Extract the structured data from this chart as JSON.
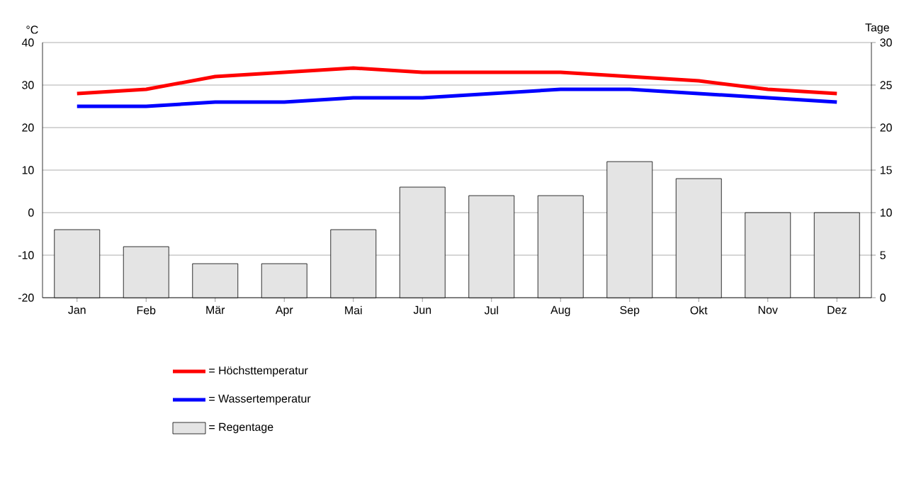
{
  "chart_data": {
    "type": "line",
    "categories": [
      "Jan",
      "Feb",
      "Mär",
      "Apr",
      "Mai",
      "Jun",
      "Jul",
      "Aug",
      "Sep",
      "Okt",
      "Nov",
      "Dez"
    ],
    "series": [
      {
        "name": "= Höchsttemperatur",
        "color": "#ff0000",
        "values": [
          28,
          29,
          32,
          33,
          34,
          33,
          33,
          33,
          32,
          31,
          29,
          28
        ]
      },
      {
        "name": "= Wassertemperatur",
        "color": "#0000ff",
        "values": [
          25,
          25,
          26,
          26,
          27,
          27,
          28,
          29,
          29,
          28,
          27,
          26
        ]
      },
      {
        "name": "= Regentage",
        "type": "bar",
        "axis": "y2",
        "color": "#e4e4e4",
        "values": [
          8,
          6,
          4,
          4,
          8,
          13,
          12,
          12,
          16,
          14,
          10,
          10
        ]
      }
    ],
    "ylabel": "°C",
    "y2label": "Tage",
    "ylim": [
      -20,
      40
    ],
    "yticks": [
      -20,
      -10,
      0,
      10,
      20,
      30,
      40
    ],
    "y2lim": [
      0,
      30
    ],
    "y2ticks": [
      0,
      5,
      10,
      15,
      20,
      25,
      30
    ],
    "grid": "y",
    "legend": "bottom"
  }
}
